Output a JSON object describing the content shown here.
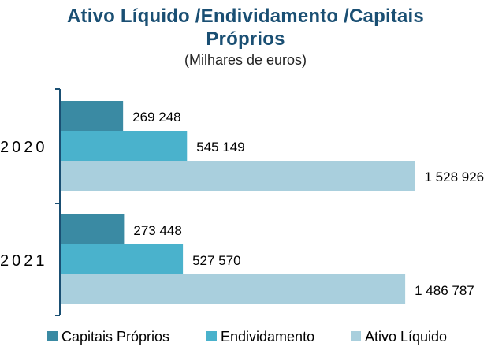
{
  "chart_data": {
    "type": "bar",
    "orientation": "horizontal",
    "title_lines": [
      "Ativo Líquido /Endividamento /Capitais",
      "Próprios"
    ],
    "subtitle": "(Milhares de euros)",
    "categories": [
      "2020",
      "2021"
    ],
    "series": [
      {
        "name": "Capitais Próprios",
        "values": [
          269248,
          273448
        ],
        "labels": [
          "269 248",
          "273 448"
        ],
        "color": "#3a8aa3"
      },
      {
        "name": "Endividamento",
        "values": [
          545149,
          527570
        ],
        "labels": [
          "545 149",
          "527 570"
        ],
        "color": "#4ab2cc"
      },
      {
        "name": "Ativo Líquido",
        "values": [
          1528926,
          1486787
        ],
        "labels": [
          "1 528 926",
          "1 486 787"
        ],
        "color": "#a9cfdd"
      }
    ],
    "xlim": [
      0,
      1600000
    ],
    "legend_position": "bottom",
    "grid": false,
    "axis_color": "#1a4f73"
  }
}
